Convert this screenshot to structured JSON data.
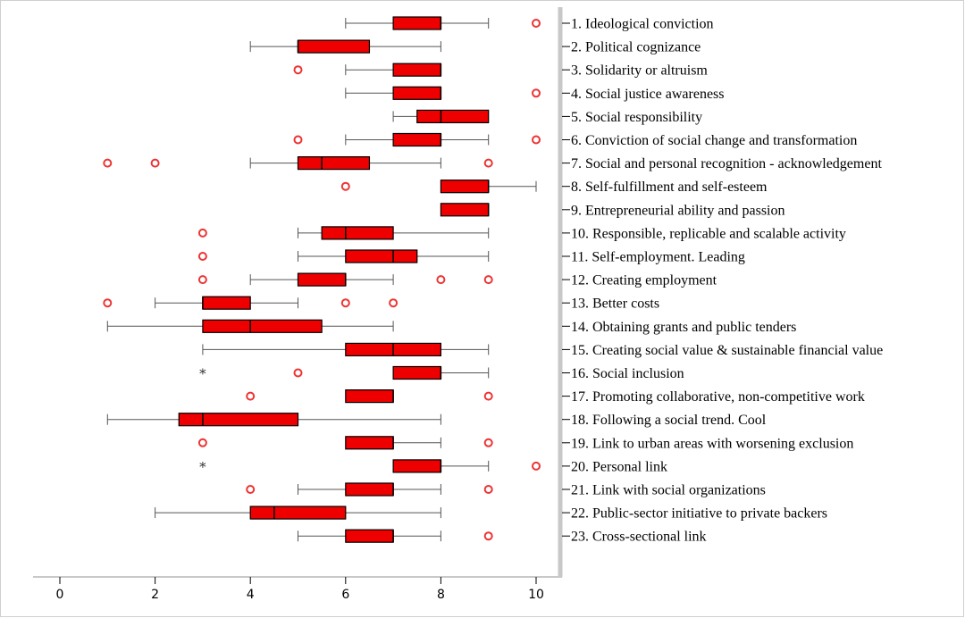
{
  "chart_data": {
    "type": "boxplot",
    "orientation": "horizontal",
    "xlim": [
      -0.5,
      10.5
    ],
    "xticks": [
      0,
      2,
      4,
      6,
      8,
      10
    ],
    "grid": false,
    "box_color": "#ee0000",
    "outlier_color": "#ee3333",
    "panel_background": "#ffffff",
    "categories": [
      {
        "label": "1. Ideological conviction",
        "whisker_low": 6,
        "q1": 7,
        "median": 8,
        "q3": 8,
        "whisker_high": 9,
        "outliers": [
          10
        ],
        "extremes": []
      },
      {
        "label": "2. Political cognizance",
        "whisker_low": 4,
        "q1": 5,
        "median": 5,
        "q3": 6.5,
        "whisker_high": 8,
        "outliers": [],
        "extremes": []
      },
      {
        "label": "3. Solidarity or altruism",
        "whisker_low": 6,
        "q1": 7,
        "median": 8,
        "q3": 8,
        "whisker_high": 8,
        "outliers": [
          5
        ],
        "extremes": []
      },
      {
        "label": "4. Social justice awareness",
        "whisker_low": 6,
        "q1": 7,
        "median": 8,
        "q3": 8,
        "whisker_high": 8,
        "outliers": [
          10
        ],
        "extremes": []
      },
      {
        "label": "5. Social responsibility",
        "whisker_low": 7,
        "q1": 7.5,
        "median": 8,
        "q3": 9,
        "whisker_high": 9,
        "outliers": [],
        "extremes": []
      },
      {
        "label": "6. Conviction of social change and transformation",
        "whisker_low": 6,
        "q1": 7,
        "median": 8,
        "q3": 8,
        "whisker_high": 9,
        "outliers": [
          5,
          10
        ],
        "extremes": []
      },
      {
        "label": "7. Social and personal recognition - acknowledgement",
        "whisker_low": 4,
        "q1": 5,
        "median": 5.5,
        "q3": 6.5,
        "whisker_high": 8,
        "outliers": [
          1,
          2,
          9
        ],
        "extremes": []
      },
      {
        "label": "8. Self-fulfillment and self-esteem",
        "whisker_low": 8,
        "q1": 8,
        "median": 9,
        "q3": 9,
        "whisker_high": 10,
        "outliers": [
          6
        ],
        "extremes": []
      },
      {
        "label": "9. Entrepreneurial ability and passion",
        "whisker_low": 8,
        "q1": 8,
        "median": 9,
        "q3": 9,
        "whisker_high": 9,
        "outliers": [],
        "extremes": []
      },
      {
        "label": "10. Responsible, replicable and scalable activity",
        "whisker_low": 5,
        "q1": 5.5,
        "median": 6,
        "q3": 7,
        "whisker_high": 9,
        "outliers": [
          3
        ],
        "extremes": []
      },
      {
        "label": "11. Self-employment. Leading",
        "whisker_low": 5,
        "q1": 6,
        "median": 7,
        "q3": 7.5,
        "whisker_high": 9,
        "outliers": [
          3
        ],
        "extremes": []
      },
      {
        "label": "12. Creating employment",
        "whisker_low": 4,
        "q1": 5,
        "median": 6,
        "q3": 6,
        "whisker_high": 7,
        "outliers": [
          3,
          8,
          9
        ],
        "extremes": []
      },
      {
        "label": "13. Better costs",
        "whisker_low": 2,
        "q1": 3,
        "median": 3,
        "q3": 4,
        "whisker_high": 5,
        "outliers": [
          1,
          6,
          7
        ],
        "extremes": []
      },
      {
        "label": "14. Obtaining grants and public tenders",
        "whisker_low": 1,
        "q1": 3,
        "median": 4,
        "q3": 5.5,
        "whisker_high": 7,
        "outliers": [],
        "extremes": []
      },
      {
        "label": "15. Creating social value & sustainable financial value",
        "whisker_low": 3,
        "q1": 6,
        "median": 7,
        "q3": 8,
        "whisker_high": 9,
        "outliers": [],
        "extremes": []
      },
      {
        "label": "16. Social inclusion",
        "whisker_low": 7,
        "q1": 7,
        "median": 8,
        "q3": 8,
        "whisker_high": 9,
        "outliers": [
          5
        ],
        "extremes": [
          3
        ]
      },
      {
        "label": "17. Promoting collaborative, non-competitive work",
        "whisker_low": 6,
        "q1": 6,
        "median": 7,
        "q3": 7,
        "whisker_high": 7,
        "outliers": [
          4,
          9
        ],
        "extremes": []
      },
      {
        "label": "18. Following a social trend. Cool",
        "whisker_low": 1,
        "q1": 2.5,
        "median": 3,
        "q3": 5,
        "whisker_high": 8,
        "outliers": [],
        "extremes": []
      },
      {
        "label": "19. Link to urban areas with worsening exclusion",
        "whisker_low": 6,
        "q1": 6,
        "median": 7,
        "q3": 7,
        "whisker_high": 8,
        "outliers": [
          3,
          9
        ],
        "extremes": []
      },
      {
        "label": "20. Personal link",
        "whisker_low": 7,
        "q1": 7,
        "median": 8,
        "q3": 8,
        "whisker_high": 9,
        "outliers": [
          10
        ],
        "extremes": [
          3
        ]
      },
      {
        "label": "21. Link with social organizations",
        "whisker_low": 5,
        "q1": 6,
        "median": 7,
        "q3": 7,
        "whisker_high": 8,
        "outliers": [
          4,
          9
        ],
        "extremes": []
      },
      {
        "label": "22. Public-sector initiative to private backers",
        "whisker_low": 2,
        "q1": 4,
        "median": 4.5,
        "q3": 6,
        "whisker_high": 8,
        "outliers": [],
        "extremes": []
      },
      {
        "label": "23. Cross-sectional link",
        "whisker_low": 5,
        "q1": 6,
        "median": 7,
        "q3": 7,
        "whisker_high": 8,
        "outliers": [
          9
        ],
        "extremes": []
      }
    ]
  }
}
